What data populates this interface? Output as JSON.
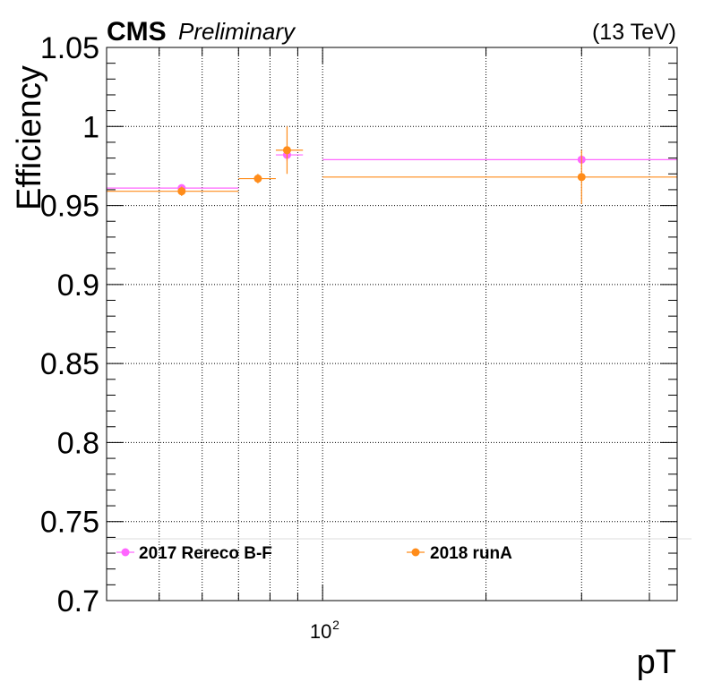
{
  "header": {
    "experiment": "CMS",
    "status": "Preliminary",
    "energy": "(13 TeV)"
  },
  "chart_data": {
    "type": "scatter",
    "title": "",
    "xlabel": "pT",
    "ylabel": "Efficiency",
    "xscale": "log",
    "xlim": [
      40,
      450
    ],
    "ylim": [
      0.7,
      1.05
    ],
    "yticks": [
      "0.7",
      "0.75",
      "0.8",
      "0.85",
      "0.9",
      "0.95",
      "1",
      "1.05"
    ],
    "xtick_labels": [
      {
        "base": "10",
        "exp": "2",
        "value": 100
      }
    ],
    "grid": true,
    "legend_position": "bottom",
    "series": [
      {
        "name": "2017 Rereco B-F",
        "color": "#ff66ff",
        "points": [
          {
            "x": 55,
            "xlow": 40,
            "xhigh": 70,
            "y": 0.961,
            "yerr": 0.002
          },
          {
            "x": 86,
            "xlow": 82,
            "xhigh": 92,
            "y": 0.982,
            "yerr": 0.004
          },
          {
            "x": 300,
            "xlow": 100,
            "xhigh": 450,
            "y": 0.979,
            "yerr": 0.003
          }
        ]
      },
      {
        "name": "2018 runA",
        "color": "#ff8c1a",
        "points": [
          {
            "x": 55,
            "xlow": 40,
            "xhigh": 70,
            "y": 0.959,
            "yerr": 0.003
          },
          {
            "x": 76,
            "xlow": 70,
            "xhigh": 82,
            "y": 0.967,
            "yerr": 0.003
          },
          {
            "x": 86,
            "xlow": 82,
            "xhigh": 92,
            "y": 0.985,
            "yerr": 0.015
          },
          {
            "x": 300,
            "xlow": 100,
            "xhigh": 450,
            "y": 0.968,
            "yerr": 0.017
          }
        ]
      }
    ]
  }
}
